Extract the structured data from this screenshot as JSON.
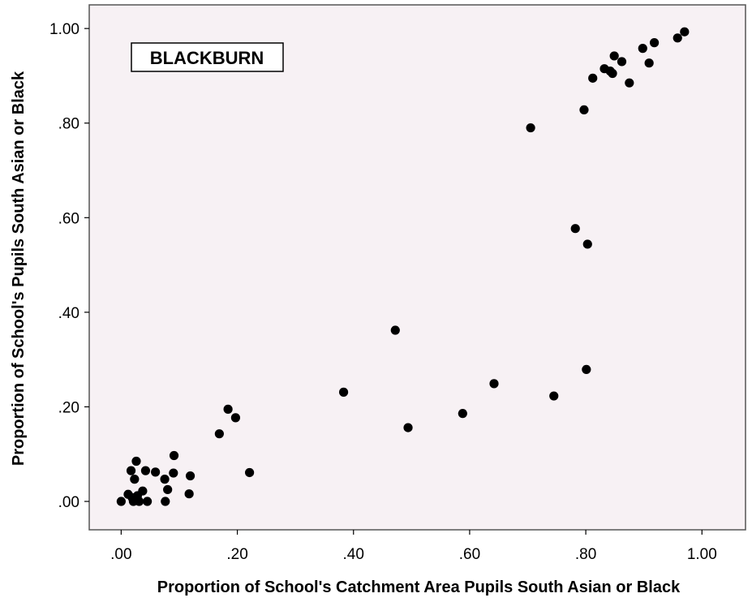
{
  "chart_data": {
    "type": "scatter",
    "title": "",
    "annotation": "BLACKBURN",
    "xlabel": "Proportion of School's Catchment Area Pupils South Asian or Black",
    "ylabel": "Proportion of School's Pupils South Asian or Black",
    "xlim": [
      -0.055,
      1.075
    ],
    "ylim": [
      -0.06,
      1.05
    ],
    "x_ticks": [
      0,
      0.2,
      0.4,
      0.6,
      0.8,
      1.0
    ],
    "x_tick_labels": [
      ".00",
      ".20",
      ".40",
      ".60",
      ".80",
      "1.00"
    ],
    "y_ticks": [
      0,
      0.2,
      0.4,
      0.6,
      0.8,
      1.0
    ],
    "y_tick_labels": [
      ".00",
      ".20",
      ".40",
      ".60",
      ".80",
      "1.00"
    ],
    "grid": false,
    "colors": {
      "plot_background": "#f7f1f4",
      "point": "#000000",
      "frame": "#555555"
    },
    "points": [
      {
        "x": 0.0,
        "y": 0.0
      },
      {
        "x": 0.012,
        "y": 0.015
      },
      {
        "x": 0.017,
        "y": 0.065
      },
      {
        "x": 0.019,
        "y": 0.008
      },
      {
        "x": 0.021,
        "y": 0.0
      },
      {
        "x": 0.023,
        "y": 0.047
      },
      {
        "x": 0.026,
        "y": 0.085
      },
      {
        "x": 0.028,
        "y": 0.012
      },
      {
        "x": 0.031,
        "y": 0.0
      },
      {
        "x": 0.037,
        "y": 0.022
      },
      {
        "x": 0.042,
        "y": 0.065
      },
      {
        "x": 0.045,
        "y": 0.0
      },
      {
        "x": 0.059,
        "y": 0.062
      },
      {
        "x": 0.075,
        "y": 0.047
      },
      {
        "x": 0.076,
        "y": 0.0
      },
      {
        "x": 0.08,
        "y": 0.025
      },
      {
        "x": 0.09,
        "y": 0.06
      },
      {
        "x": 0.091,
        "y": 0.097
      },
      {
        "x": 0.117,
        "y": 0.016
      },
      {
        "x": 0.119,
        "y": 0.054
      },
      {
        "x": 0.169,
        "y": 0.143
      },
      {
        "x": 0.184,
        "y": 0.195
      },
      {
        "x": 0.197,
        "y": 0.177
      },
      {
        "x": 0.221,
        "y": 0.061
      },
      {
        "x": 0.383,
        "y": 0.231
      },
      {
        "x": 0.472,
        "y": 0.362
      },
      {
        "x": 0.494,
        "y": 0.156
      },
      {
        "x": 0.588,
        "y": 0.186
      },
      {
        "x": 0.642,
        "y": 0.249
      },
      {
        "x": 0.705,
        "y": 0.79
      },
      {
        "x": 0.745,
        "y": 0.223
      },
      {
        "x": 0.782,
        "y": 0.577
      },
      {
        "x": 0.797,
        "y": 0.828
      },
      {
        "x": 0.801,
        "y": 0.279
      },
      {
        "x": 0.803,
        "y": 0.544
      },
      {
        "x": 0.812,
        "y": 0.895
      },
      {
        "x": 0.832,
        "y": 0.915
      },
      {
        "x": 0.842,
        "y": 0.91
      },
      {
        "x": 0.846,
        "y": 0.905
      },
      {
        "x": 0.849,
        "y": 0.942
      },
      {
        "x": 0.862,
        "y": 0.93
      },
      {
        "x": 0.875,
        "y": 0.885
      },
      {
        "x": 0.898,
        "y": 0.958
      },
      {
        "x": 0.909,
        "y": 0.927
      },
      {
        "x": 0.918,
        "y": 0.97
      },
      {
        "x": 0.958,
        "y": 0.98
      },
      {
        "x": 0.97,
        "y": 0.993
      }
    ]
  }
}
